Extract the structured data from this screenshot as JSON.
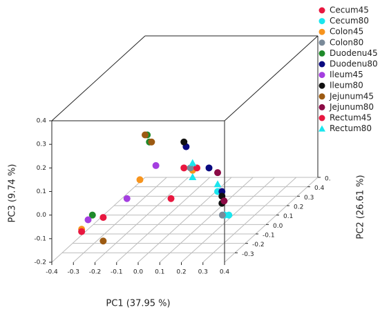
{
  "chart_data": {
    "type": "scatter3d",
    "xlabel": "PC1 (37.95 %)",
    "ylabel": "PC2 (26.61 %)",
    "zlabel": "PC3 (9.74 %)",
    "xlim": [
      -0.4,
      0.4
    ],
    "ylim": [
      -0.4,
      0.5
    ],
    "zlim": [
      -0.2,
      0.4
    ],
    "xticks": [
      -0.4,
      -0.3,
      -0.2,
      -0.1,
      {
        "value": 0,
        "label": "0.0"
      },
      0.1,
      0.2,
      0.3,
      0.4
    ],
    "yticks": [
      -0.3,
      -0.2,
      -0.1,
      {
        "value": 0,
        "label": "0.0"
      },
      0.1,
      0.2,
      0.3,
      0.4,
      {
        "value": 0.5,
        "label": "0."
      }
    ],
    "zticks": [
      -0.2,
      -0.1,
      {
        "value": 0,
        "label": "0.0"
      },
      0.1,
      0.2,
      0.3,
      0.4
    ],
    "grid": true,
    "legend": "upper right",
    "series": [
      {
        "name": "Cecum45",
        "color": "#e8173f",
        "marker": "circle",
        "x": [
          -0.21,
          0.02
        ],
        "y": [
          -0.3,
          0
        ],
        "z": [
          -0.05,
          0.04
        ]
      },
      {
        "name": "Cecum80",
        "color": "#1ae6ee",
        "marker": "circle",
        "x": [
          0.08,
          0.18,
          0.16
        ],
        "y": [
          0.2,
          0.1,
          0.1
        ],
        "z": [
          -0.14,
          -0.2,
          -0.2
        ]
      },
      {
        "name": "Colon45",
        "color": "#f7941d",
        "marker": "circle",
        "x": [
          -0.31,
          -0.04,
          0.06
        ],
        "y": [
          -0.3,
          -0.3,
          0
        ],
        "z": [
          -0.1,
          0.11,
          0.03
        ]
      },
      {
        "name": "Colon80",
        "color": "#7a8a99",
        "marker": "circle",
        "x": [
          0.05,
          0.15
        ],
        "y": [
          0,
          0.1
        ],
        "z": [
          0.04,
          -0.2
        ]
      },
      {
        "name": "Duodenu45",
        "color": "#1e8a2a",
        "marker": "circle",
        "x": [
          -0.26,
          -0.15,
          -0.14
        ],
        "y": [
          -0.3,
          0,
          0
        ],
        "z": [
          -0.04,
          0.18,
          0.15
        ]
      },
      {
        "name": "Duodenu80",
        "color": "#0a0a80",
        "marker": "circle",
        "x": [
          0.03,
          0.04,
          0.1
        ],
        "y": [
          0,
          0.2,
          0.2
        ],
        "z": [
          0.13,
          -0.04,
          -0.14
        ]
      },
      {
        "name": "Ileum45",
        "color": "#a43ee0",
        "marker": "circle",
        "x": [
          -0.28,
          -0.1,
          -0.11
        ],
        "y": [
          -0.3,
          -0.3,
          0
        ],
        "z": [
          -0.06,
          0.03,
          0.05
        ]
      },
      {
        "name": "Ileum80",
        "color": "#111111",
        "marker": "circle",
        "x": [
          0.02,
          0.1,
          0.1
        ],
        "y": [
          0,
          0.2,
          0.2
        ],
        "z": [
          0.15,
          -0.16,
          -0.19
        ]
      },
      {
        "name": "Jejunum45",
        "color": "#9c5a12",
        "marker": "circle",
        "x": [
          -0.21,
          -0.16,
          -0.13
        ],
        "y": [
          -0.3,
          0,
          0
        ],
        "z": [
          -0.15,
          0.18,
          0.15
        ]
      },
      {
        "name": "Jejunum80",
        "color": "#8b0a45",
        "marker": "circle",
        "x": [
          0.08,
          0.11
        ],
        "y": [
          0.2,
          0.2
        ],
        "z": [
          -0.06,
          -0.18
        ]
      },
      {
        "name": "Rectum45",
        "color": "#e8173f",
        "marker": "circle",
        "x": [
          -0.31,
          -0.04,
          0.08
        ],
        "y": [
          -0.3,
          0,
          0
        ],
        "z": [
          -0.11,
          -0.09,
          0.04
        ]
      },
      {
        "name": "Rectum80",
        "color": "#1ae6ee",
        "marker": "triangle",
        "x": [
          0.06,
          0.06,
          0.08
        ],
        "y": [
          0,
          0,
          0.2
        ],
        "z": [
          0.06,
          0,
          -0.11
        ]
      }
    ]
  }
}
